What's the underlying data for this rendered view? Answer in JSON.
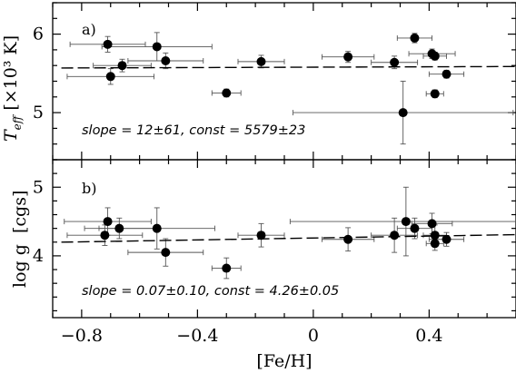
{
  "chart_data": [
    {
      "type": "scatter",
      "panel_label": "a)",
      "ylabel_main": "T",
      "ylabel_sub": "eff",
      "ylabel_unit": "[×10³ K]",
      "xlim": [
        -0.9,
        0.7
      ],
      "ylim": [
        4.4,
        6.4
      ],
      "yticks": [
        5,
        6
      ],
      "ytick_labels": [
        "5",
        "6"
      ],
      "yminor": 0.2,
      "annotation": "slope = 12±61,  const = 5579±23",
      "fit": {
        "slope": 0.012,
        "intercept": 5.579,
        "style": "dashed"
      },
      "points": [
        {
          "x": -0.71,
          "y": 5.87,
          "xerr": 0.13,
          "yerr": 0.1
        },
        {
          "x": -0.7,
          "y": 5.46,
          "xerr": 0.15,
          "yerr": 0.1
        },
        {
          "x": -0.66,
          "y": 5.6,
          "xerr": 0.1,
          "yerr": 0.08
        },
        {
          "x": -0.54,
          "y": 5.84,
          "xerr": 0.19,
          "yerr": 0.18
        },
        {
          "x": -0.51,
          "y": 5.66,
          "xerr": 0.13,
          "yerr": 0.1
        },
        {
          "x": -0.3,
          "y": 5.25,
          "xerr": 0.05,
          "yerr": 0.05
        },
        {
          "x": -0.18,
          "y": 5.65,
          "xerr": 0.08,
          "yerr": 0.08
        },
        {
          "x": 0.12,
          "y": 5.71,
          "xerr": 0.09,
          "yerr": 0.07
        },
        {
          "x": 0.28,
          "y": 5.64,
          "xerr": 0.08,
          "yerr": 0.08
        },
        {
          "x": 0.31,
          "y": 5.0,
          "xerr": 0.38,
          "yerr": 0.4
        },
        {
          "x": 0.35,
          "y": 5.95,
          "xerr": 0.06,
          "yerr": 0.06
        },
        {
          "x": 0.41,
          "y": 5.75,
          "xerr": 0.08,
          "yerr": 0.06
        },
        {
          "x": 0.42,
          "y": 5.72,
          "xerr": 0.04,
          "yerr": 0.05
        },
        {
          "x": 0.42,
          "y": 5.24,
          "xerr": 0.03,
          "yerr": 0.05
        },
        {
          "x": 0.46,
          "y": 5.49,
          "xerr": 0.06,
          "yerr": 0.05
        }
      ]
    },
    {
      "type": "scatter",
      "panel_label": "b)",
      "ylabel_main": "log g",
      "ylabel_unit": "[cgs]",
      "xlabel": "[Fe/H]",
      "xlim": [
        -0.9,
        0.7
      ],
      "xticks": [
        -0.8,
        -0.4,
        0,
        0.4
      ],
      "xtick_labels": [
        "−0.8",
        "−0.4",
        "0",
        "0.4"
      ],
      "xminor": 0.1,
      "ylim": [
        3.1,
        5.4
      ],
      "yticks": [
        4,
        5
      ],
      "ytick_labels": [
        "4",
        "5"
      ],
      "yminor": 0.2,
      "annotation": "slope = 0.07±0.10,  const = 4.26±0.05",
      "fit": {
        "slope": 0.07,
        "intercept": 4.26,
        "style": "dashed"
      },
      "points": [
        {
          "x": -0.72,
          "y": 4.3,
          "xerr": 0.13,
          "yerr": 0.15
        },
        {
          "x": -0.71,
          "y": 4.5,
          "xerr": 0.15,
          "yerr": 0.2
        },
        {
          "x": -0.67,
          "y": 4.4,
          "xerr": 0.12,
          "yerr": 0.15
        },
        {
          "x": -0.54,
          "y": 4.4,
          "xerr": 0.2,
          "yerr": 0.3
        },
        {
          "x": -0.51,
          "y": 4.05,
          "xerr": 0.13,
          "yerr": 0.2
        },
        {
          "x": -0.3,
          "y": 3.82,
          "xerr": 0.05,
          "yerr": 0.15
        },
        {
          "x": -0.18,
          "y": 4.3,
          "xerr": 0.08,
          "yerr": 0.17
        },
        {
          "x": 0.12,
          "y": 4.24,
          "xerr": 0.09,
          "yerr": 0.17
        },
        {
          "x": 0.28,
          "y": 4.3,
          "xerr": 0.08,
          "yerr": 0.25
        },
        {
          "x": 0.32,
          "y": 4.5,
          "xerr": 0.4,
          "yerr": 0.5
        },
        {
          "x": 0.35,
          "y": 4.4,
          "xerr": 0.06,
          "yerr": 0.15
        },
        {
          "x": 0.41,
          "y": 4.47,
          "xerr": 0.07,
          "yerr": 0.15
        },
        {
          "x": 0.42,
          "y": 4.3,
          "xerr": 0.04,
          "yerr": 0.15
        },
        {
          "x": 0.42,
          "y": 4.18,
          "xerr": 0.03,
          "yerr": 0.1
        },
        {
          "x": 0.46,
          "y": 4.24,
          "xerr": 0.06,
          "yerr": 0.1
        }
      ]
    }
  ]
}
